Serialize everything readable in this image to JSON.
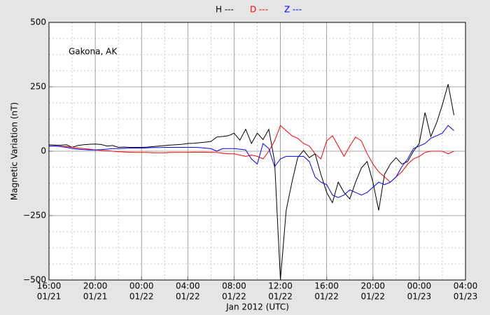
{
  "chart_data": {
    "type": "line",
    "xlabel": "Jan 2012 (UTC)",
    "ylabel": "Magnetic Variation (nT)",
    "annotation": "Gakona, AK",
    "x": [
      "01/21 16:00",
      "01/21 16:30",
      "01/21 17:00",
      "01/21 17:30",
      "01/21 18:00",
      "01/21 18:30",
      "01/21 19:00",
      "01/21 19:30",
      "01/21 20:00",
      "01/21 20:30",
      "01/21 21:00",
      "01/21 21:30",
      "01/21 22:00",
      "01/21 22:30",
      "01/21 23:00",
      "01/21 23:30",
      "01/22 00:00",
      "01/22 00:30",
      "01/22 01:00",
      "01/22 01:30",
      "01/22 02:00",
      "01/22 02:30",
      "01/22 03:00",
      "01/22 03:30",
      "01/22 04:00",
      "01/22 04:30",
      "01/22 05:00",
      "01/22 05:30",
      "01/22 06:00",
      "01/22 06:30",
      "01/22 07:00",
      "01/22 07:30",
      "01/22 08:00",
      "01/22 08:30",
      "01/22 09:00",
      "01/22 09:30",
      "01/22 10:00",
      "01/22 10:30",
      "01/22 11:00",
      "01/22 11:30",
      "01/22 12:00",
      "01/22 12:30",
      "01/22 13:00",
      "01/22 13:30",
      "01/22 14:00",
      "01/22 14:30",
      "01/22 15:00",
      "01/22 15:30",
      "01/22 16:00",
      "01/22 16:30",
      "01/22 17:00",
      "01/22 17:30",
      "01/22 18:00",
      "01/22 18:30",
      "01/22 19:00",
      "01/22 19:30",
      "01/22 20:00",
      "01/22 20:30",
      "01/22 21:00",
      "01/22 21:30",
      "01/22 22:00",
      "01/22 22:30",
      "01/22 23:00",
      "01/22 23:30",
      "01/23 00:00",
      "01/23 00:30",
      "01/23 01:00",
      "01/23 01:30",
      "01/23 02:00",
      "01/23 02:30",
      "01/23 03:00"
    ],
    "series": [
      {
        "name": "H ---",
        "color": "#000000",
        "values": [
          25,
          24,
          23,
          25,
          15,
          22,
          25,
          27,
          28,
          26,
          20,
          22,
          15,
          16,
          15,
          15,
          15,
          16,
          18,
          20,
          22,
          24,
          25,
          27,
          30,
          31,
          33,
          35,
          38,
          55,
          57,
          60,
          70,
          43,
          85,
          30,
          70,
          45,
          85,
          -40,
          -500,
          -230,
          -120,
          -25,
          3,
          -25,
          -10,
          -90,
          -160,
          -200,
          -120,
          -160,
          -185,
          -120,
          -65,
          -40,
          -120,
          -230,
          -90,
          -50,
          -25,
          -50,
          -40,
          0,
          30,
          150,
          57,
          110,
          180,
          260,
          140
        ]
      },
      {
        "name": "D ---",
        "color": "#ff0000",
        "values": [
          20,
          20,
          19,
          18,
          15,
          12,
          10,
          8,
          5,
          3,
          2,
          0,
          -2,
          -3,
          -4,
          -5,
          -5,
          -5,
          -6,
          -6,
          -6,
          -5,
          -5,
          -5,
          -5,
          -4,
          -4,
          -4,
          -5,
          -5,
          -8,
          -10,
          -10,
          -15,
          -20,
          -15,
          -20,
          -30,
          0,
          40,
          100,
          80,
          60,
          50,
          30,
          20,
          -10,
          -30,
          40,
          60,
          20,
          -20,
          20,
          55,
          40,
          -10,
          -50,
          -80,
          -100,
          -120,
          -100,
          -80,
          -50,
          -30,
          -20,
          -5,
          0,
          0,
          0,
          -10,
          0
        ]
      },
      {
        "name": "Z ---",
        "color": "#0000ff",
        "values": [
          20,
          20,
          18,
          15,
          10,
          8,
          6,
          5,
          5,
          6,
          8,
          10,
          10,
          11,
          12,
          12,
          12,
          13,
          14,
          14,
          15,
          15,
          15,
          15,
          15,
          15,
          14,
          12,
          10,
          0,
          10,
          10,
          10,
          8,
          5,
          -30,
          -50,
          30,
          10,
          -60,
          -30,
          -20,
          -20,
          -20,
          -20,
          -40,
          -100,
          -120,
          -130,
          -170,
          -180,
          -170,
          -150,
          -160,
          -170,
          -160,
          -140,
          -120,
          -130,
          -120,
          -100,
          -60,
          -30,
          10,
          20,
          30,
          50,
          60,
          70,
          100,
          80
        ]
      }
    ],
    "xlim": [
      "01/21 16:00",
      "01/23 04:00"
    ],
    "xticks": [
      {
        "value": "01/21 16:00",
        "label": [
          "16:00",
          "01/21"
        ]
      },
      {
        "value": "01/21 20:00",
        "label": [
          "20:00",
          "01/21"
        ]
      },
      {
        "value": "01/22 00:00",
        "label": [
          "00:00",
          "01/22"
        ]
      },
      {
        "value": "01/22 04:00",
        "label": [
          "04:00",
          "01/22"
        ]
      },
      {
        "value": "01/22 08:00",
        "label": [
          "08:00",
          "01/22"
        ]
      },
      {
        "value": "01/22 12:00",
        "label": [
          "12:00",
          "01/22"
        ]
      },
      {
        "value": "01/22 16:00",
        "label": [
          "16:00",
          "01/22"
        ]
      },
      {
        "value": "01/22 20:00",
        "label": [
          "20:00",
          "01/22"
        ]
      },
      {
        "value": "01/23 00:00",
        "label": [
          "00:00",
          "01/23"
        ]
      },
      {
        "value": "01/23 04:00",
        "label": [
          "04:00",
          "01/23"
        ]
      }
    ],
    "ylim": [
      -500,
      500
    ],
    "yticks": [
      {
        "value": -500,
        "label": "−500"
      },
      {
        "value": -250,
        "label": "−250"
      },
      0,
      250,
      500
    ],
    "grid": true
  }
}
